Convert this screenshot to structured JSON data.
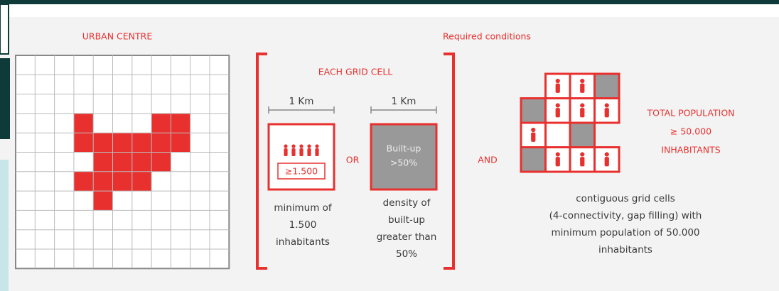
{
  "urban_centre": {
    "title": "URBAN CENTRE"
  },
  "conditions": {
    "title": "Required conditions",
    "grid_cell": {
      "title": "EACH GRID CELL",
      "population": {
        "scale": "1 Km",
        "badge": "≥1.500",
        "caption": [
          "minimum of",
          "1.500",
          "inhabitants"
        ]
      },
      "connector": "OR",
      "built_up": {
        "scale": "1 Km",
        "badge": [
          "Built-up",
          ">50%"
        ],
        "caption": [
          "density of",
          "built-up",
          "greater than",
          "50%"
        ]
      }
    },
    "connector": "AND",
    "cluster": {
      "label": [
        "TOTAL POPULATION",
        "≥ 50.000",
        "INHABITANTS"
      ],
      "caption": [
        "contiguous grid cells",
        "(4-connectivity, gap filling) with",
        "minimum population of 50.000",
        "inhabitants"
      ]
    }
  }
}
